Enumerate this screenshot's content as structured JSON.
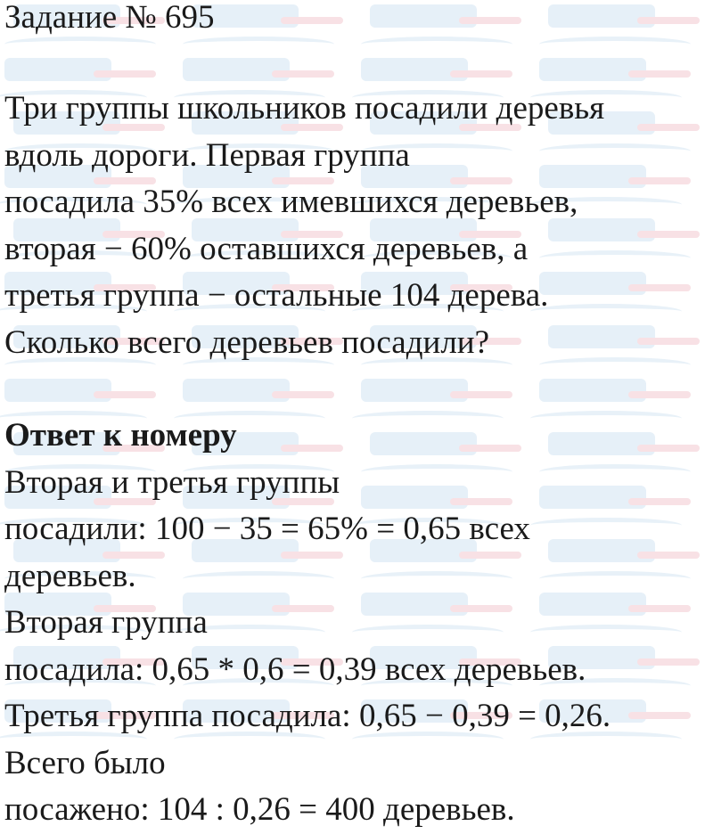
{
  "watermark": {
    "brand": "Илюха",
    "suffix": "-решает.рф",
    "colors": {
      "brand": "#d6e6f2",
      "suffix": "#f3cdd3"
    }
  },
  "title": "Задание № 695",
  "problem_lines": [
    "Три группы школьников посадили деревья",
    "вдоль дороги. Первая группа",
    "посадила 35% всех имевшихся деревьев,",
    "вторая − 60% оставшихся деревьев, а",
    "третья группа − остальные 104 дерева.",
    "Сколько всего деревьев посадили?"
  ],
  "answer_heading": "Ответ к номеру",
  "answer_lines": [
    "Вторая и третья группы",
    "посадили: 100 − 35 = 65% = 0,65 всех",
    "деревьев.",
    "Вторая группа",
    "посадила: 0,65 * 0,6 = 0,39 всех деревьев.",
    "Третья группа посадила: 0,65 − 0,39 = 0,26.",
    "Всего было",
    "посажено: 104 : 0,26 = 400 деревьев."
  ]
}
